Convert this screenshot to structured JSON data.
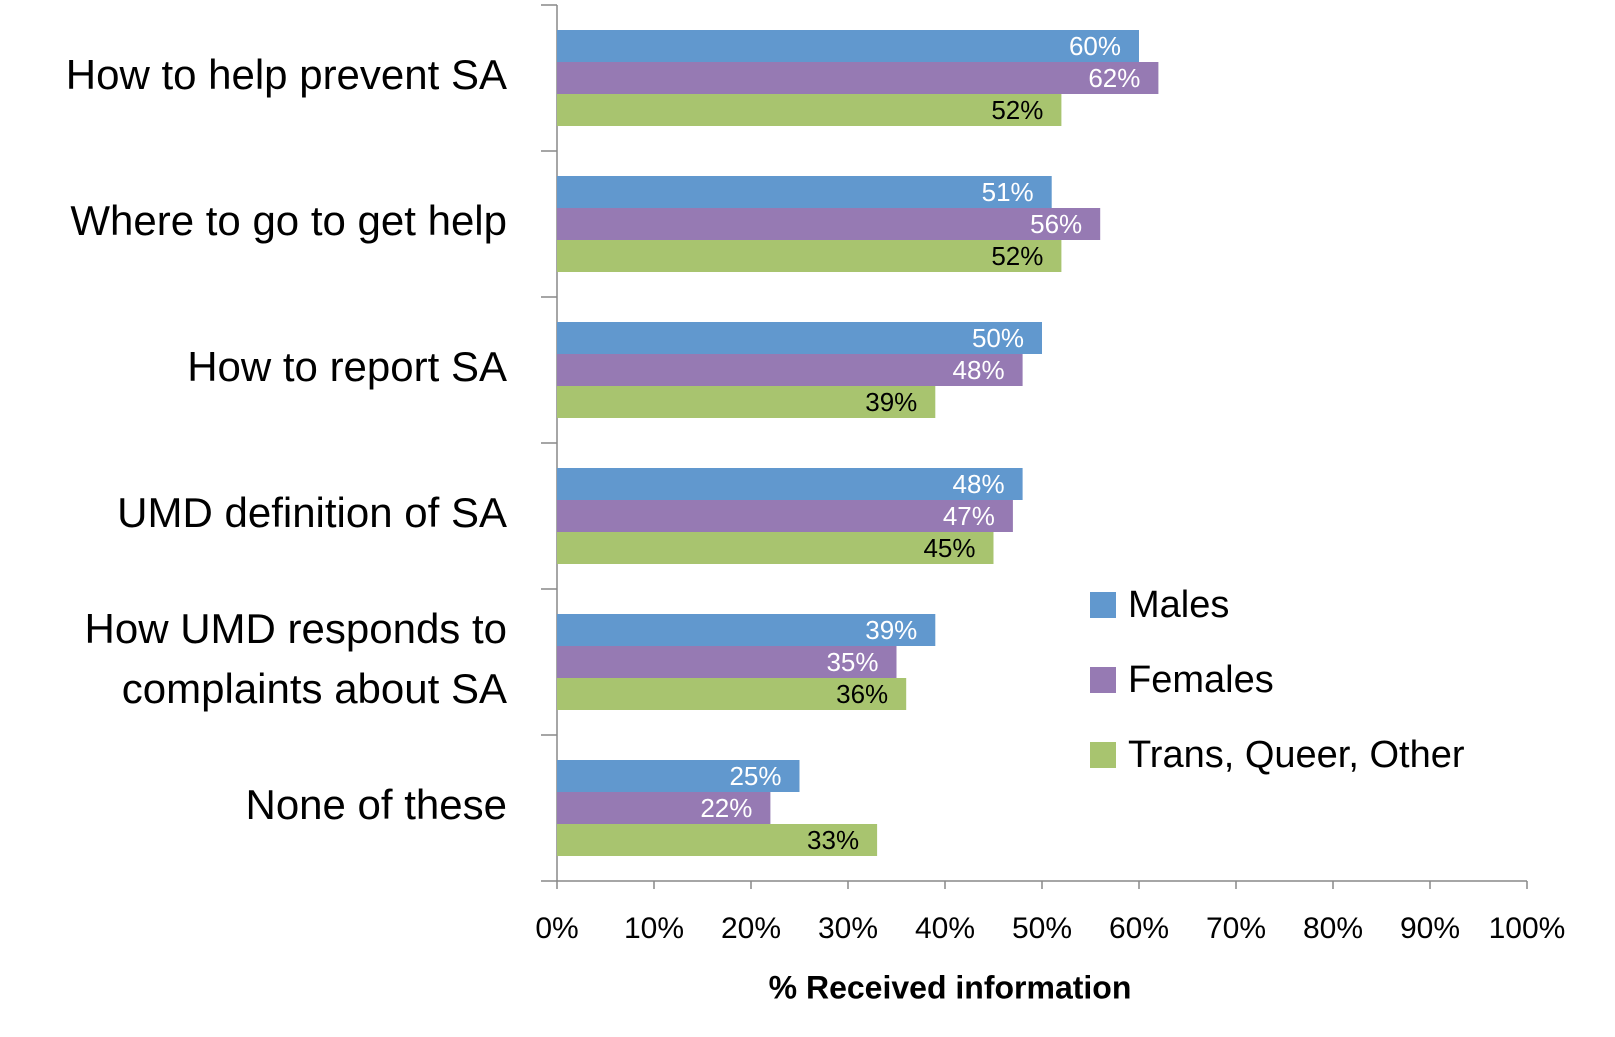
{
  "chart_data": {
    "type": "hbar",
    "x_label": "% Received information",
    "categories": [
      "How to help prevent SA",
      "Where to go to get help",
      "How to report SA",
      "UMD definition of SA",
      "How UMD responds to complaints about SA",
      "None of these"
    ],
    "series": [
      {
        "name": "Males",
        "color": "#6198ce",
        "label_color": "#ffffff",
        "values": [
          60,
          51,
          50,
          48,
          39,
          25
        ],
        "value_labels": [
          "60%",
          "51%",
          "50%",
          "48%",
          "39%",
          "25%"
        ]
      },
      {
        "name": "Females",
        "color": "#967ab3",
        "label_color": "#ffffff",
        "values": [
          62,
          56,
          48,
          47,
          35,
          22
        ],
        "value_labels": [
          "62%",
          "56%",
          "48%",
          "47%",
          "35%",
          "22%"
        ]
      },
      {
        "name": "Trans, Queer, Other",
        "color": "#a8c46f",
        "label_color": "#000000",
        "values": [
          52,
          52,
          39,
          45,
          36,
          33
        ],
        "value_labels": [
          "52%",
          "52%",
          "39%",
          "45%",
          "36%",
          "33%"
        ]
      }
    ],
    "xlim": [
      0,
      100
    ],
    "xticks": [
      {
        "value": 0,
        "label": "0%"
      },
      {
        "value": 10,
        "label": "10%"
      },
      {
        "value": 20,
        "label": "20%"
      },
      {
        "value": 30,
        "label": "30%"
      },
      {
        "value": 40,
        "label": "40%"
      },
      {
        "value": 50,
        "label": "50%"
      },
      {
        "value": 60,
        "label": "60%"
      },
      {
        "value": 70,
        "label": "70%"
      },
      {
        "value": 80,
        "label": "80%"
      },
      {
        "value": 90,
        "label": "90%"
      },
      {
        "value": 100,
        "label": "100%"
      }
    ],
    "grid": false,
    "legend": "right"
  }
}
